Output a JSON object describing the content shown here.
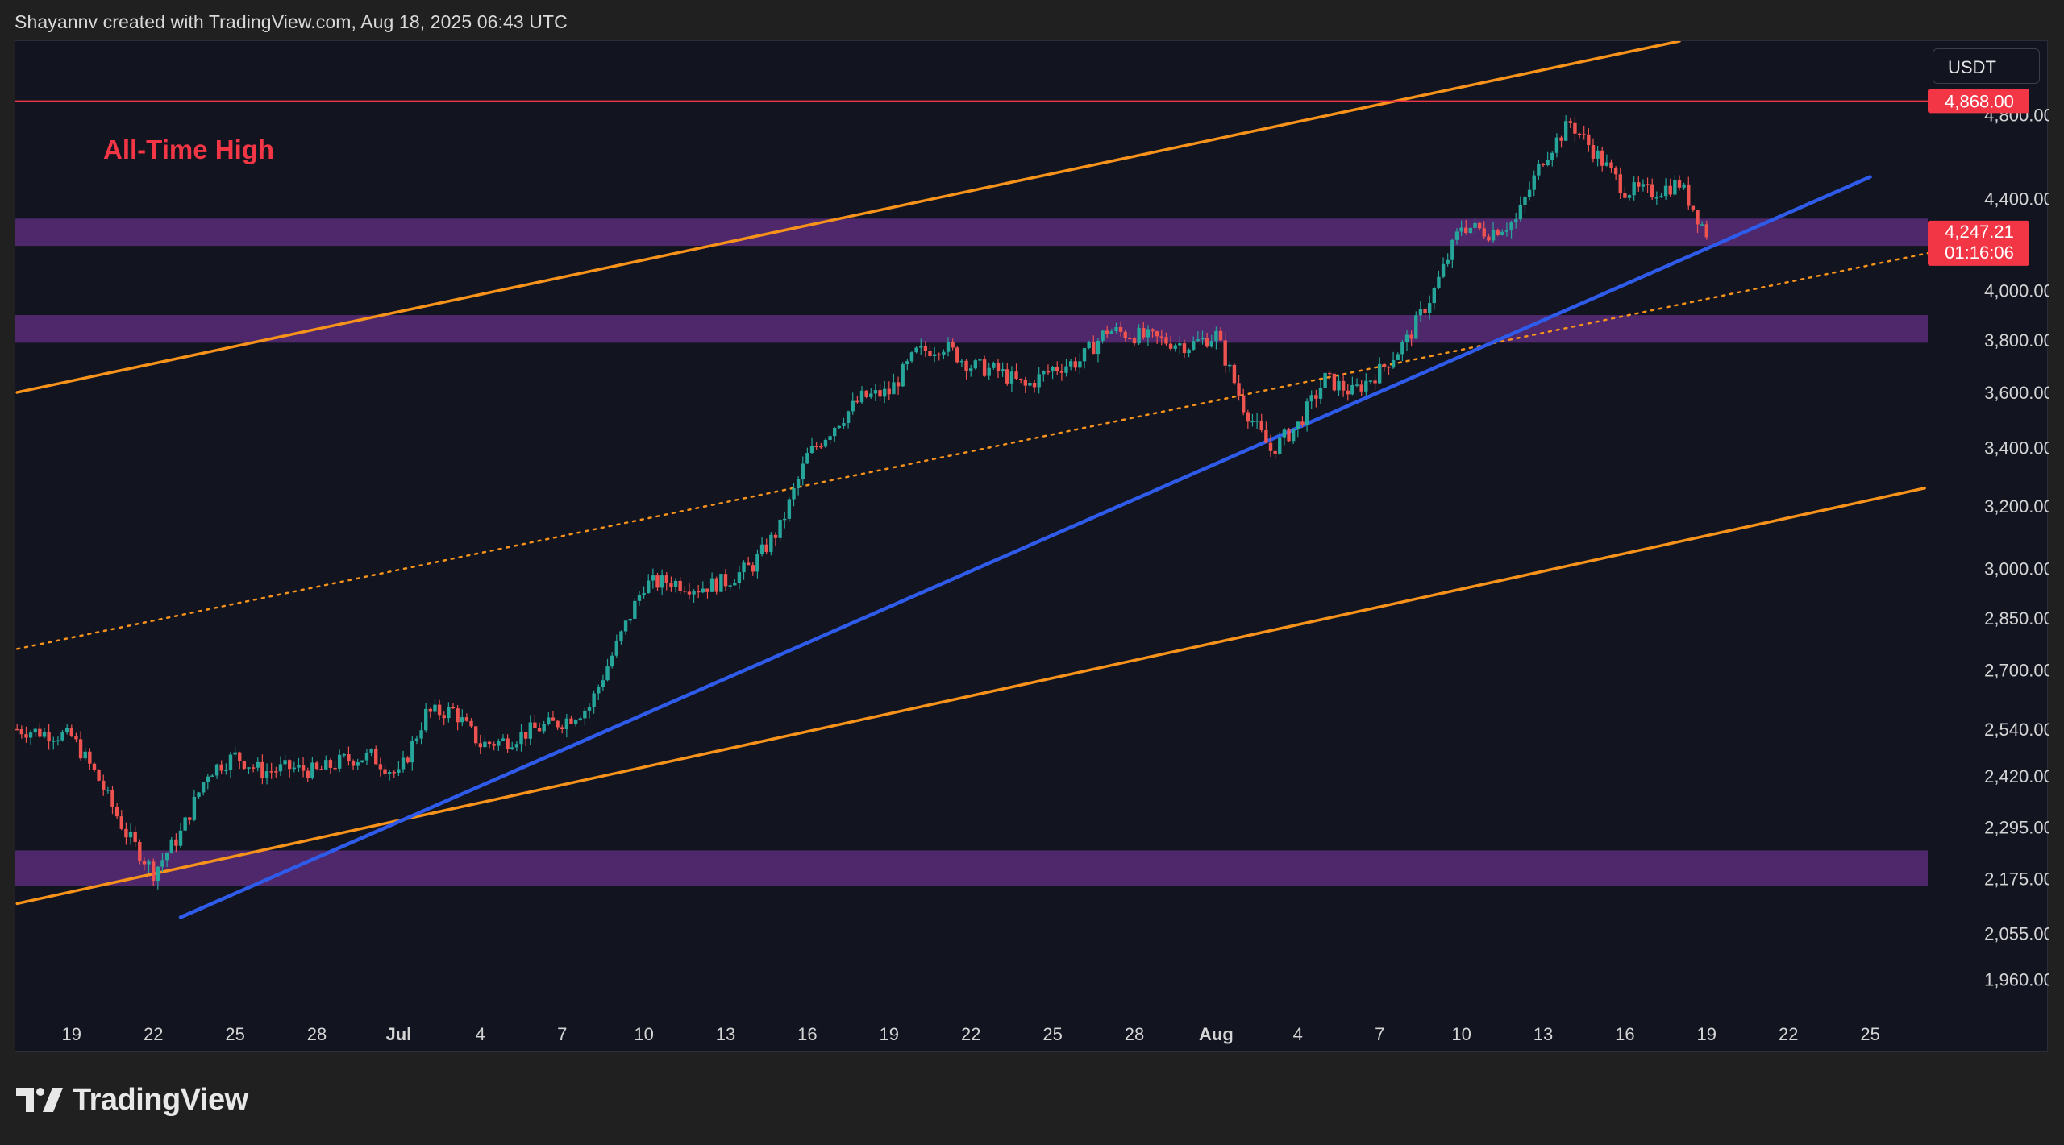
{
  "header": {
    "attribution": "Shayannv created with TradingView.com, Aug 18, 2025 06:43 UTC"
  },
  "toolbar": {
    "currency": "USDT"
  },
  "annotation": {
    "ath_label": "All-Time High"
  },
  "price_badges": {
    "ath": "4,868.00",
    "current": "4,247.21",
    "countdown": "01:16:06"
  },
  "brand": {
    "name": "TradingView",
    "icon": "tradingview-logo-icon"
  },
  "colors": {
    "background": "#121420",
    "up": "#26a69a",
    "down": "#ef5350",
    "channel": "#f7931a",
    "trendline": "#2f5bea",
    "zone": "#5a2c7a",
    "ath": "#f23645"
  },
  "chart_data": {
    "type": "candlestick",
    "symbol_quote": "USDT",
    "x_tick_labels": [
      "19",
      "22",
      "25",
      "28",
      "Jul",
      "4",
      "7",
      "10",
      "13",
      "16",
      "19",
      "22",
      "25",
      "28",
      "Aug",
      "4",
      "7",
      "10",
      "13",
      "16",
      "19",
      "22",
      "25"
    ],
    "y_tick_labels": [
      "4,800.00",
      "4,400.00",
      "4,000.00",
      "3,800.00",
      "3,600.00",
      "3,400.00",
      "3,200.00",
      "3,000.00",
      "2,850.00",
      "2,700.00",
      "2,540.00",
      "2,420.00",
      "2,295.00",
      "2,175.00",
      "2,055.00",
      "1,960.00"
    ],
    "y_tick_values": [
      4800,
      4400,
      4000,
      3800,
      3600,
      3400,
      3200,
      3000,
      2850,
      2700,
      2540,
      2420,
      2295,
      2175,
      2055,
      1960
    ],
    "scale": "log",
    "ylim": [
      1890,
      5180
    ],
    "x_range_days": [
      "2025-06-17",
      "2025-08-27"
    ],
    "ath": 4868,
    "last_price": 4247.21,
    "daily_close_path": [
      [
        "2025-06-17",
        2540
      ],
      [
        "2025-06-18",
        2530
      ],
      [
        "2025-06-19",
        2520
      ],
      [
        "2025-06-20",
        2410
      ],
      [
        "2025-06-21",
        2280
      ],
      [
        "2025-06-22",
        2190
      ],
      [
        "2025-06-23",
        2280
      ],
      [
        "2025-06-24",
        2430
      ],
      [
        "2025-06-25",
        2470
      ],
      [
        "2025-06-26",
        2430
      ],
      [
        "2025-06-27",
        2440
      ],
      [
        "2025-06-28",
        2430
      ],
      [
        "2025-06-29",
        2460
      ],
      [
        "2025-06-30",
        2470
      ],
      [
        "2025-07-01",
        2420
      ],
      [
        "2025-07-02",
        2580
      ],
      [
        "2025-07-03",
        2590
      ],
      [
        "2025-07-04",
        2500
      ],
      [
        "2025-07-05",
        2510
      ],
      [
        "2025-07-06",
        2540
      ],
      [
        "2025-07-07",
        2560
      ],
      [
        "2025-07-08",
        2600
      ],
      [
        "2025-07-09",
        2770
      ],
      [
        "2025-07-10",
        2950
      ],
      [
        "2025-07-11",
        2960
      ],
      [
        "2025-07-12",
        2940
      ],
      [
        "2025-07-13",
        2960
      ],
      [
        "2025-07-14",
        3010
      ],
      [
        "2025-07-15",
        3130
      ],
      [
        "2025-07-16",
        3370
      ],
      [
        "2025-07-17",
        3480
      ],
      [
        "2025-07-18",
        3580
      ],
      [
        "2025-07-19",
        3600
      ],
      [
        "2025-07-20",
        3750
      ],
      [
        "2025-07-21",
        3780
      ],
      [
        "2025-07-22",
        3700
      ],
      [
        "2025-07-23",
        3680
      ],
      [
        "2025-07-24",
        3620
      ],
      [
        "2025-07-25",
        3690
      ],
      [
        "2025-07-26",
        3720
      ],
      [
        "2025-07-27",
        3840
      ],
      [
        "2025-07-28",
        3820
      ],
      [
        "2025-07-29",
        3800
      ],
      [
        "2025-07-30",
        3780
      ],
      [
        "2025-07-31",
        3820
      ],
      [
        "2025-08-01",
        3550
      ],
      [
        "2025-08-02",
        3390
      ],
      [
        "2025-08-03",
        3480
      ],
      [
        "2025-08-04",
        3650
      ],
      [
        "2025-08-05",
        3600
      ],
      [
        "2025-08-06",
        3680
      ],
      [
        "2025-08-07",
        3800
      ],
      [
        "2025-08-08",
        4000
      ],
      [
        "2025-08-09",
        4280
      ],
      [
        "2025-08-10",
        4250
      ],
      [
        "2025-08-11",
        4300
      ],
      [
        "2025-08-12",
        4590
      ],
      [
        "2025-08-13",
        4760
      ],
      [
        "2025-08-14",
        4600
      ],
      [
        "2025-08-15",
        4440
      ],
      [
        "2025-08-16",
        4430
      ],
      [
        "2025-08-17",
        4470
      ],
      [
        "2025-08-18",
        4247
      ]
    ],
    "support_zones": [
      [
        4190,
        4310
      ],
      [
        3790,
        3900
      ],
      [
        2160,
        2240
      ]
    ],
    "channel_upper": [
      [
        "2025-06-17",
        3600
      ],
      [
        "2025-08-17",
        5180
      ]
    ],
    "channel_mid": [
      [
        "2025-06-17",
        2760
      ],
      [
        "2025-08-27",
        4180
      ]
    ],
    "channel_lower": [
      [
        "2025-06-17",
        2120
      ],
      [
        "2025-08-26",
        3260
      ]
    ],
    "trendline": [
      [
        "2025-06-23",
        2090
      ],
      [
        "2025-08-24",
        4500
      ]
    ]
  }
}
